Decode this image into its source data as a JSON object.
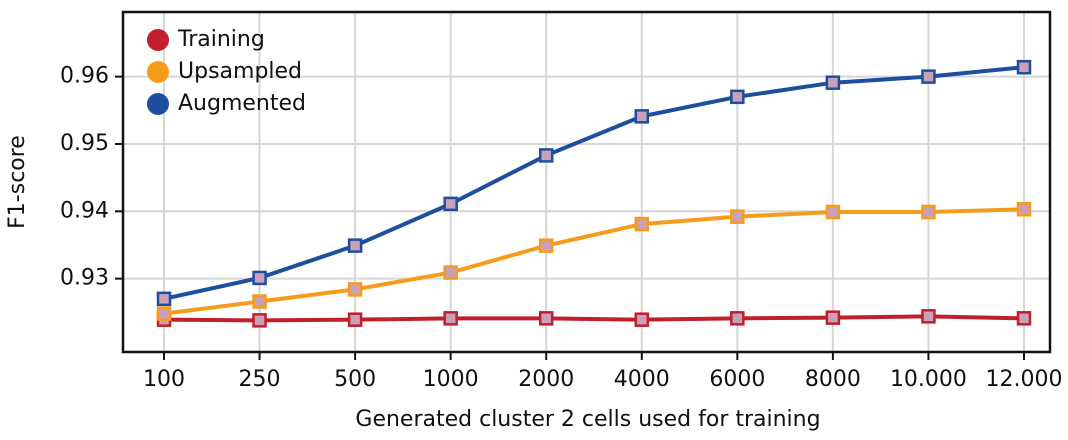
{
  "chart_data": {
    "type": "line",
    "x_label": "Generated cluster 2 cells used for training",
    "y_label": "F1-score",
    "categories": [
      "100",
      "250",
      "500",
      "1000",
      "2000",
      "4000",
      "6000",
      "8000",
      "10.000",
      "12.000"
    ],
    "series": [
      {
        "name": "Training",
        "color": "#c21f2c",
        "values": [
          0.9239,
          0.9238,
          0.9239,
          0.9241,
          0.9241,
          0.9239,
          0.9241,
          0.9242,
          0.9244,
          0.9241
        ]
      },
      {
        "name": "Upsampled",
        "color": "#f59c1a",
        "values": [
          0.9248,
          0.9266,
          0.9284,
          0.9309,
          0.9349,
          0.9381,
          0.9392,
          0.9399,
          0.9399,
          0.9403
        ]
      },
      {
        "name": "Augmented",
        "color": "#1d4f9e",
        "values": [
          0.927,
          0.9301,
          0.9349,
          0.9411,
          0.9483,
          0.9541,
          0.957,
          0.9591,
          0.96,
          0.9614
        ]
      }
    ],
    "ylim": [
      0.9191,
      0.9696
    ],
    "yticks": [
      0.93,
      0.94,
      0.95,
      0.96
    ],
    "grid": true,
    "legend": "upper left"
  }
}
